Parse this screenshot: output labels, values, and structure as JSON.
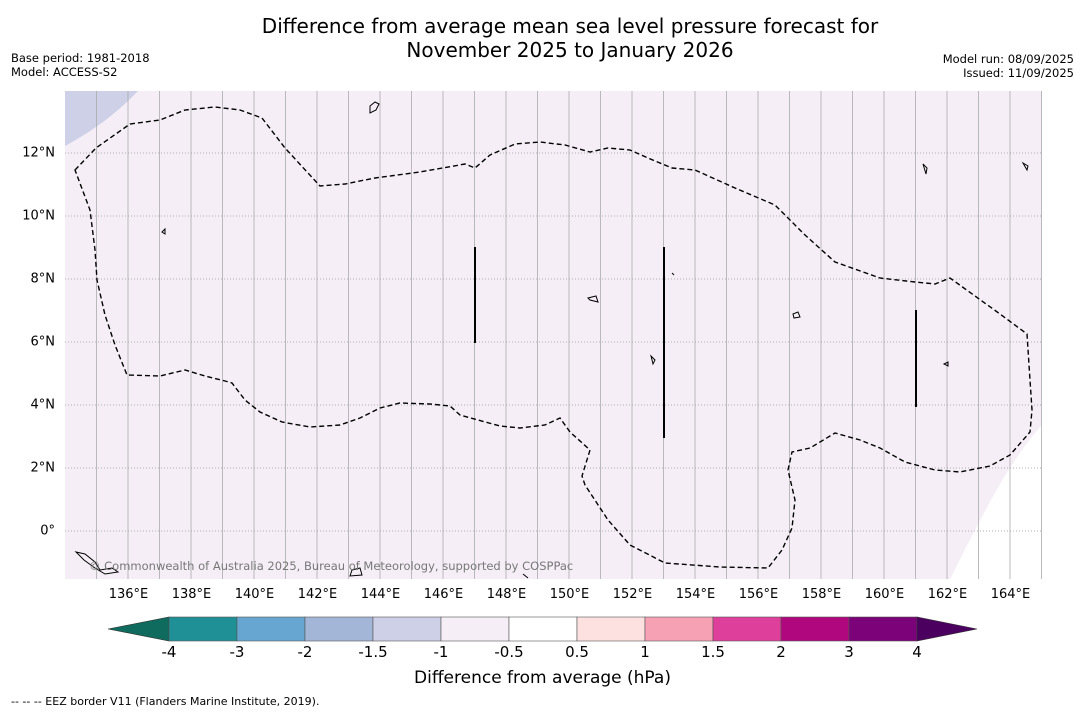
{
  "title_line1": "Difference from average mean sea level pressure forecast for",
  "title_line2": "November 2025 to January 2026",
  "meta_left": {
    "base_period": "Base period: 1981-2018",
    "model": "Model: ACCESS-S2"
  },
  "meta_right": {
    "model_run": "Model run: 08/09/2025",
    "issued": "Issued: 11/09/2025"
  },
  "map": {
    "lon_range": [
      135,
      166
    ],
    "lat_range": [
      -1.5,
      14
    ],
    "lon_ticks": [
      "136°E",
      "138°E",
      "140°E",
      "142°E",
      "144°E",
      "146°E",
      "148°E",
      "150°E",
      "152°E",
      "154°E",
      "156°E",
      "158°E",
      "160°E",
      "162°E",
      "164°E"
    ],
    "lon_values": [
      136,
      138,
      140,
      142,
      144,
      146,
      148,
      150,
      152,
      154,
      156,
      158,
      160,
      162,
      164
    ],
    "lat_ticks": [
      "12°N",
      "10°N",
      "8°N",
      "6°N",
      "4°N",
      "2°N",
      "0°"
    ],
    "lat_values": [
      12,
      10,
      8,
      6,
      4,
      2,
      0
    ],
    "background_class": "-0.5 to 0",
    "copyright": "© Commonwealth of Australia 2025, Bureau of Meteorology, supported by COSPPac"
  },
  "colorbar": {
    "tick_labels": [
      "-4",
      "-3",
      "-2",
      "-1.5",
      "-1",
      "-0.5",
      "0.5",
      "1",
      "1.5",
      "2",
      "3",
      "4"
    ],
    "colors": [
      "#0e6b5e",
      "#1f9196",
      "#66a6d0",
      "#a3b6d8",
      "#cdd0e6",
      "#f5eef7",
      "#ffffff",
      "#fde0e0",
      "#f7a1b5",
      "#de3f9a",
      "#b0067e",
      "#7b0278",
      "#4b0060"
    ],
    "label": "Difference from average (hPa)"
  },
  "footnote": "-- -- -- EEZ border V11 (Flanders Marine Institute, 2019)."
}
